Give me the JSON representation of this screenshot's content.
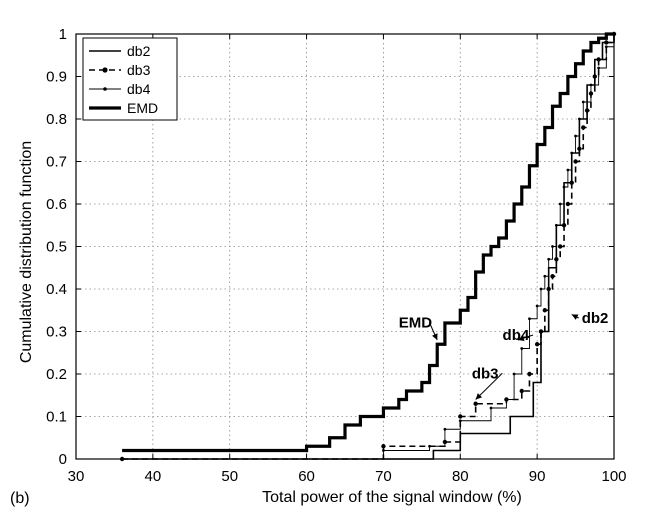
{
  "chart_data": {
    "type": "line",
    "panel_label": "(b)",
    "title": "",
    "xlabel": "Total power of the signal window (%)",
    "ylabel": "Cumulative distribution function",
    "xlim": [
      30,
      100
    ],
    "ylim": [
      0,
      1
    ],
    "xticks": [
      "30",
      "40",
      "50",
      "60",
      "70",
      "80",
      "90",
      "100"
    ],
    "yticks": [
      "0",
      "0.1",
      "0.2",
      "0.3",
      "0.4",
      "0.5",
      "0.6",
      "0.7",
      "0.8",
      "0.9",
      "1"
    ],
    "grid": true,
    "legend_position": "top-left",
    "series": [
      {
        "name": "db2",
        "style": "solid-thin",
        "x": [
          36,
          76.5,
          80,
          86.5,
          89.5,
          90.5,
          91.5,
          92.5,
          93.5,
          94.5,
          95.5,
          96.5,
          97.5,
          98.5,
          100
        ],
        "y": [
          0.0,
          0.02,
          0.06,
          0.1,
          0.18,
          0.3,
          0.45,
          0.55,
          0.65,
          0.72,
          0.8,
          0.88,
          0.94,
          0.98,
          1.0
        ]
      },
      {
        "name": "db3",
        "style": "dashed-dot",
        "x": [
          36,
          70,
          78,
          80,
          82,
          86,
          88,
          89,
          90,
          90.5,
          91,
          91.5,
          92,
          92.5,
          93,
          93.5,
          94,
          94.5,
          95,
          95.5,
          96,
          96.5,
          97,
          97.5,
          98,
          99,
          100
        ],
        "y": [
          0.0,
          0.03,
          0.04,
          0.1,
          0.13,
          0.14,
          0.16,
          0.2,
          0.27,
          0.3,
          0.35,
          0.4,
          0.43,
          0.47,
          0.5,
          0.55,
          0.6,
          0.65,
          0.7,
          0.73,
          0.78,
          0.82,
          0.86,
          0.9,
          0.94,
          0.98,
          1.0
        ]
      },
      {
        "name": "db4",
        "style": "solid-dot",
        "x": [
          36,
          70,
          76,
          78,
          80,
          84,
          86,
          87,
          88,
          89,
          90,
          90.5,
          91,
          91.5,
          92,
          92.5,
          93,
          93.5,
          94,
          94.5,
          95,
          95.5,
          96,
          97,
          98,
          99,
          100
        ],
        "y": [
          0.0,
          0.02,
          0.03,
          0.07,
          0.09,
          0.12,
          0.14,
          0.2,
          0.26,
          0.33,
          0.36,
          0.4,
          0.43,
          0.47,
          0.5,
          0.55,
          0.6,
          0.64,
          0.68,
          0.72,
          0.76,
          0.8,
          0.84,
          0.88,
          0.92,
          0.97,
          1.0
        ]
      },
      {
        "name": "EMD",
        "style": "solid-thick",
        "x": [
          36,
          60,
          63,
          65,
          67,
          70,
          72,
          73,
          75,
          76,
          77,
          78,
          79,
          80,
          81,
          82,
          83,
          84,
          85,
          86,
          87,
          88,
          89,
          90,
          91,
          92,
          93,
          94,
          95,
          96,
          97,
          98,
          99
        ],
        "y": [
          0.02,
          0.03,
          0.05,
          0.08,
          0.1,
          0.12,
          0.14,
          0.16,
          0.18,
          0.22,
          0.27,
          0.32,
          0.32,
          0.35,
          0.38,
          0.44,
          0.48,
          0.5,
          0.52,
          0.56,
          0.6,
          0.64,
          0.69,
          0.74,
          0.78,
          0.83,
          0.86,
          0.9,
          0.93,
          0.96,
          0.98,
          0.99,
          1.0
        ]
      }
    ],
    "annotations": [
      {
        "text": "EMD",
        "x": 72,
        "y": 0.31,
        "arrow_to": [
          77,
          0.28
        ]
      },
      {
        "text": "db4",
        "x": 85.5,
        "y": 0.28,
        "arrow_to": [
          87.5,
          0.28
        ]
      },
      {
        "text": "db3",
        "x": 81.5,
        "y": 0.19,
        "arrow_to": [
          82,
          0.14
        ]
      },
      {
        "text": "db2",
        "x": 95.8,
        "y": 0.32,
        "arrow_to": [
          94.5,
          0.34
        ]
      }
    ]
  }
}
